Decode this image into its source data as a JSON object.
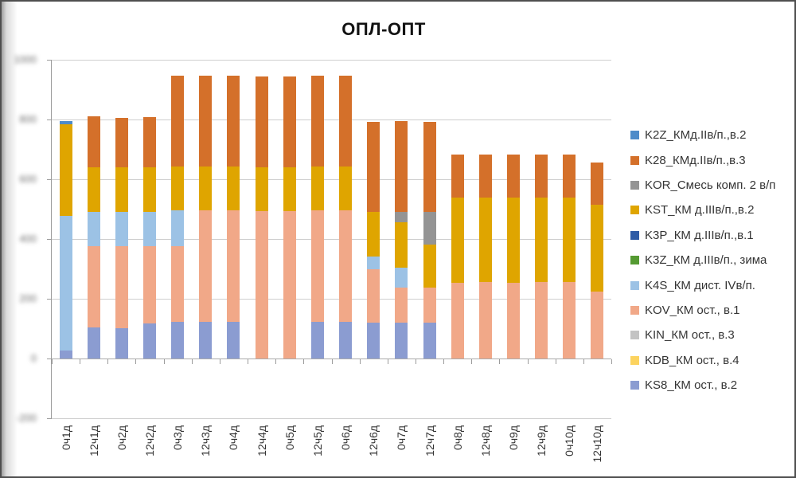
{
  "title": "ОПЛ-ОПТ",
  "chart_data": {
    "type": "bar",
    "stacked": true,
    "grid": true,
    "legend_position": "right",
    "ylim": [
      -200,
      1000
    ],
    "ytick_step": 200,
    "y_axis": {
      "tick_labels": [
        "1000",
        "800",
        "600",
        "400",
        "200",
        "0",
        "-200"
      ],
      "blurred": true
    },
    "categories": [
      "0ч1д",
      "12ч1д",
      "0ч2д",
      "12ч2д",
      "0ч3д",
      "12ч3д",
      "0ч4д",
      "12ч4д",
      "0ч5д",
      "12ч5д",
      "0ч6д",
      "12ч6д",
      "0ч7д",
      "12ч7д",
      "0ч8д",
      "12ч8д",
      "0ч9д",
      "12ч9д",
      "0ч10д",
      "12ч10д"
    ],
    "series": [
      {
        "name": "K2Z_КМд.IIв/п.,в.2",
        "color": "#4d8bc9",
        "values": [
          11,
          0,
          0,
          0,
          0,
          0,
          0,
          0,
          0,
          0,
          0,
          0,
          0,
          0,
          0,
          0,
          0,
          0,
          0,
          0
        ]
      },
      {
        "name": "K28_КМд.IIв/п.,в.3",
        "color": "#d4702a",
        "values": [
          0,
          171,
          164,
          166,
          304,
          304,
          304,
          304,
          304,
          304,
          304,
          302,
          302,
          302,
          142,
          142,
          142,
          142,
          142,
          141
        ]
      },
      {
        "name": "KOR_Смесь комп. 2 в/п",
        "color": "#949494",
        "values": [
          0,
          0,
          0,
          0,
          0,
          0,
          0,
          0,
          0,
          0,
          0,
          0,
          36,
          109,
          0,
          0,
          0,
          0,
          0,
          0
        ]
      },
      {
        "name": "KST_КМ д.IIIв/п.,в.2",
        "color": "#dfa500",
        "values": [
          305,
          149,
          149,
          149,
          147,
          147,
          147,
          147,
          147,
          147,
          147,
          149,
          151,
          144,
          287,
          285,
          287,
          285,
          285,
          291
        ]
      },
      {
        "name": "K3P_КМ д.IIIв/п.,в.1",
        "color": "#2e5ba6",
        "values": [
          0,
          0,
          0,
          0,
          0,
          0,
          0,
          0,
          0,
          0,
          0,
          0,
          0,
          0,
          0,
          0,
          0,
          0,
          0,
          0
        ]
      },
      {
        "name": "K3Z_КМ д.IIIв/п., зима",
        "color": "#559a32",
        "values": [
          0,
          0,
          0,
          0,
          0,
          0,
          0,
          0,
          0,
          0,
          0,
          0,
          0,
          0,
          0,
          0,
          0,
          0,
          0,
          0
        ]
      },
      {
        "name": "K4S_КМ дист. IVв/п.",
        "color": "#9cc2e5",
        "values": [
          451,
          116,
          116,
          116,
          120,
          0,
          0,
          0,
          0,
          0,
          0,
          44,
          67,
          0,
          0,
          0,
          0,
          0,
          0,
          0
        ]
      },
      {
        "name": "KOV_КМ ост., в.1",
        "color": "#f1a888",
        "values": [
          0,
          273,
          274,
          258,
          252,
          372,
          372,
          494,
          494,
          372,
          372,
          178,
          118,
          118,
          253,
          255,
          253,
          255,
          255,
          225
        ]
      },
      {
        "name": "KIN_КМ ост., в.3",
        "color": "#c3c3c3",
        "values": [
          0,
          0,
          0,
          0,
          0,
          0,
          0,
          0,
          0,
          0,
          0,
          0,
          0,
          0,
          0,
          0,
          0,
          0,
          0,
          0
        ]
      },
      {
        "name": "KDB_КМ ост., в.4",
        "color": "#fcd35f",
        "values": [
          0,
          0,
          0,
          0,
          0,
          0,
          0,
          0,
          0,
          0,
          0,
          0,
          0,
          0,
          0,
          0,
          0,
          0,
          0,
          0
        ]
      },
      {
        "name": "KS8_КМ ост., в.2",
        "color": "#8b9cd1",
        "values": [
          27,
          103,
          102,
          118,
          123,
          123,
          123,
          0,
          0,
          123,
          123,
          120,
          120,
          120,
          0,
          0,
          0,
          0,
          0,
          0
        ]
      }
    ]
  }
}
